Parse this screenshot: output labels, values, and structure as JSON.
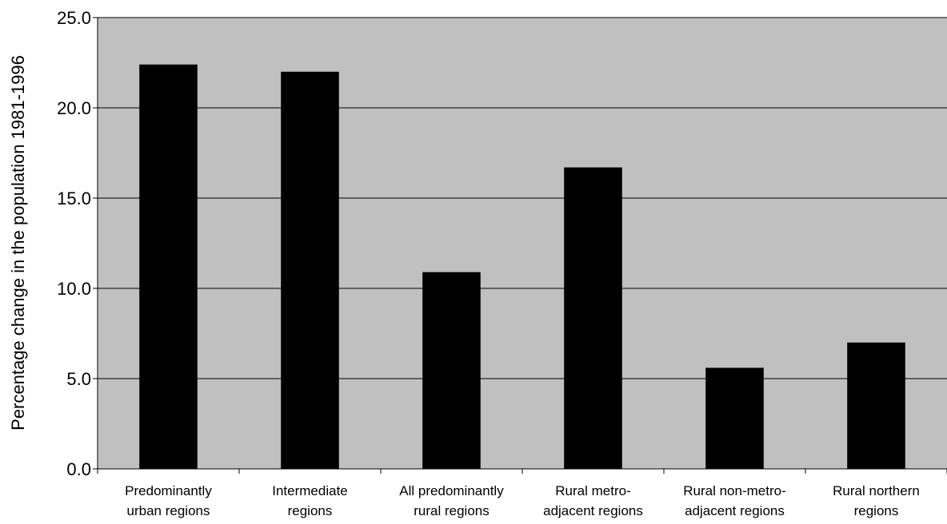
{
  "chart_data": {
    "type": "bar",
    "title": "",
    "xlabel": "",
    "ylabel": "Percentage change in the population 1981-1996",
    "categories": [
      [
        "Predominantly",
        "urban regions"
      ],
      [
        "Intermediate",
        "regions"
      ],
      [
        "All predominantly",
        "rural regions"
      ],
      [
        "Rural metro-",
        "adjacent regions"
      ],
      [
        "Rural non-metro-",
        "adjacent regions"
      ],
      [
        "Rural northern",
        "regions"
      ]
    ],
    "values": [
      22.4,
      22.0,
      10.9,
      16.7,
      5.6,
      7.0
    ],
    "ylim": [
      0,
      25
    ],
    "yticks": [
      "0.0",
      "5.0",
      "10.0",
      "15.0",
      "20.0",
      "25.0"
    ],
    "grid": true,
    "legend": "none",
    "colors": {
      "plot_background": "#c0c0c0",
      "bar": "#000000",
      "gridline": "#000000"
    }
  }
}
